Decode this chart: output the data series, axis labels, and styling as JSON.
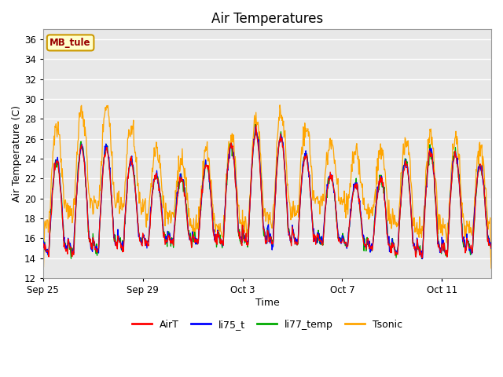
{
  "title": "Air Temperatures",
  "xlabel": "Time",
  "ylabel": "Air Temperature (C)",
  "ylim": [
    12,
    37
  ],
  "yticks": [
    12,
    14,
    16,
    18,
    20,
    22,
    24,
    26,
    28,
    30,
    32,
    34,
    36
  ],
  "xtick_labels": [
    "Sep 25",
    "Sep 29",
    "Oct 3",
    "Oct 7",
    "Oct 11"
  ],
  "xtick_positions": [
    0,
    192,
    384,
    576,
    768
  ],
  "colors": {
    "AirT": "#ff0000",
    "li75_t": "#0000ff",
    "li77_temp": "#00aa00",
    "Tsonic": "#ffa500"
  },
  "annotation_text": "MB_tule",
  "annotation_color": "#990000",
  "annotation_bg": "#ffffcc",
  "annotation_border": "#cc9900",
  "plot_bg": "#e8e8e8",
  "linewidth": 0.9,
  "points_per_day": 48,
  "n_days": 18,
  "seed": 12345
}
